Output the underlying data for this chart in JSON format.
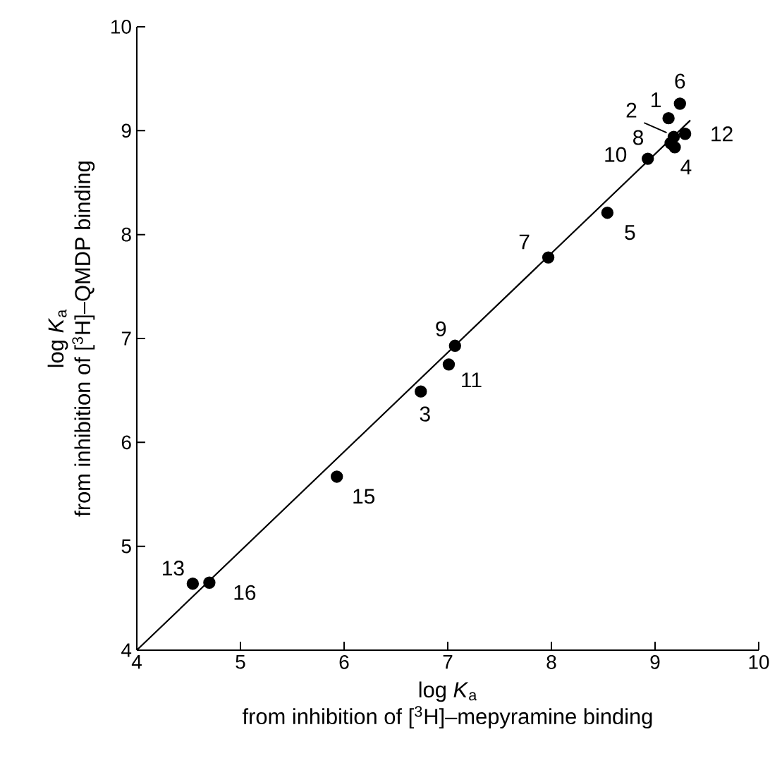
{
  "chart_data": {
    "type": "scatter",
    "xlabel": "log *K*$_{a}$\nfrom inhibition of [$^{3}$H]–mepyramine binding",
    "ylabel": "log *K*$_{a}$\nfrom inhibition of [$^{3}$H]–QMDP binding",
    "xlim": [
      4,
      10
    ],
    "ylim": [
      4,
      10
    ],
    "xticks": [
      4,
      5,
      6,
      7,
      8,
      9,
      10
    ],
    "yticks": [
      4,
      5,
      6,
      7,
      8,
      9,
      10
    ],
    "marker": "circle",
    "series": [
      {
        "color": "#000000",
        "x": [
          9.13,
          9.18,
          6.74,
          9.19,
          8.54,
          9.24,
          7.97,
          9.15,
          7.07,
          8.93,
          7.01,
          9.29,
          4.54,
          5.93,
          4.7
        ],
        "values": [
          9.12,
          8.94,
          6.49,
          8.84,
          8.21,
          9.26,
          7.78,
          8.88,
          6.93,
          8.73,
          6.75,
          8.97,
          4.64,
          5.67,
          4.65
        ]
      },
      {
        "type": "line",
        "color": "#000000",
        "marker": "none",
        "line_style": "solid",
        "x": [
          4,
          9.34
        ],
        "values": [
          4,
          9.1
        ]
      }
    ],
    "annotations": [
      {
        "text": "1",
        "x": 9.13,
        "y": 9.12
      },
      {
        "text": "2",
        "x": 9.18,
        "y": 8.94
      },
      {
        "text": "3",
        "x": 6.74,
        "y": 6.49
      },
      {
        "text": "4",
        "x": 9.19,
        "y": 8.84
      },
      {
        "text": "5",
        "x": 8.54,
        "y": 8.21
      },
      {
        "text": "6",
        "x": 9.24,
        "y": 9.26
      },
      {
        "text": "7",
        "x": 7.97,
        "y": 7.78
      },
      {
        "text": "8",
        "x": 9.15,
        "y": 8.88
      },
      {
        "text": "9",
        "x": 7.07,
        "y": 6.93
      },
      {
        "text": "10",
        "x": 8.93,
        "y": 8.73
      },
      {
        "text": "11",
        "x": 7.01,
        "y": 6.75
      },
      {
        "text": "12",
        "x": 9.29,
        "y": 8.97
      },
      {
        "text": "13",
        "x": 4.54,
        "y": 4.64
      },
      {
        "text": "15",
        "x": 5.93,
        "y": 5.67
      },
      {
        "text": "16",
        "x": 4.7,
        "y": 4.65
      }
    ]
  }
}
